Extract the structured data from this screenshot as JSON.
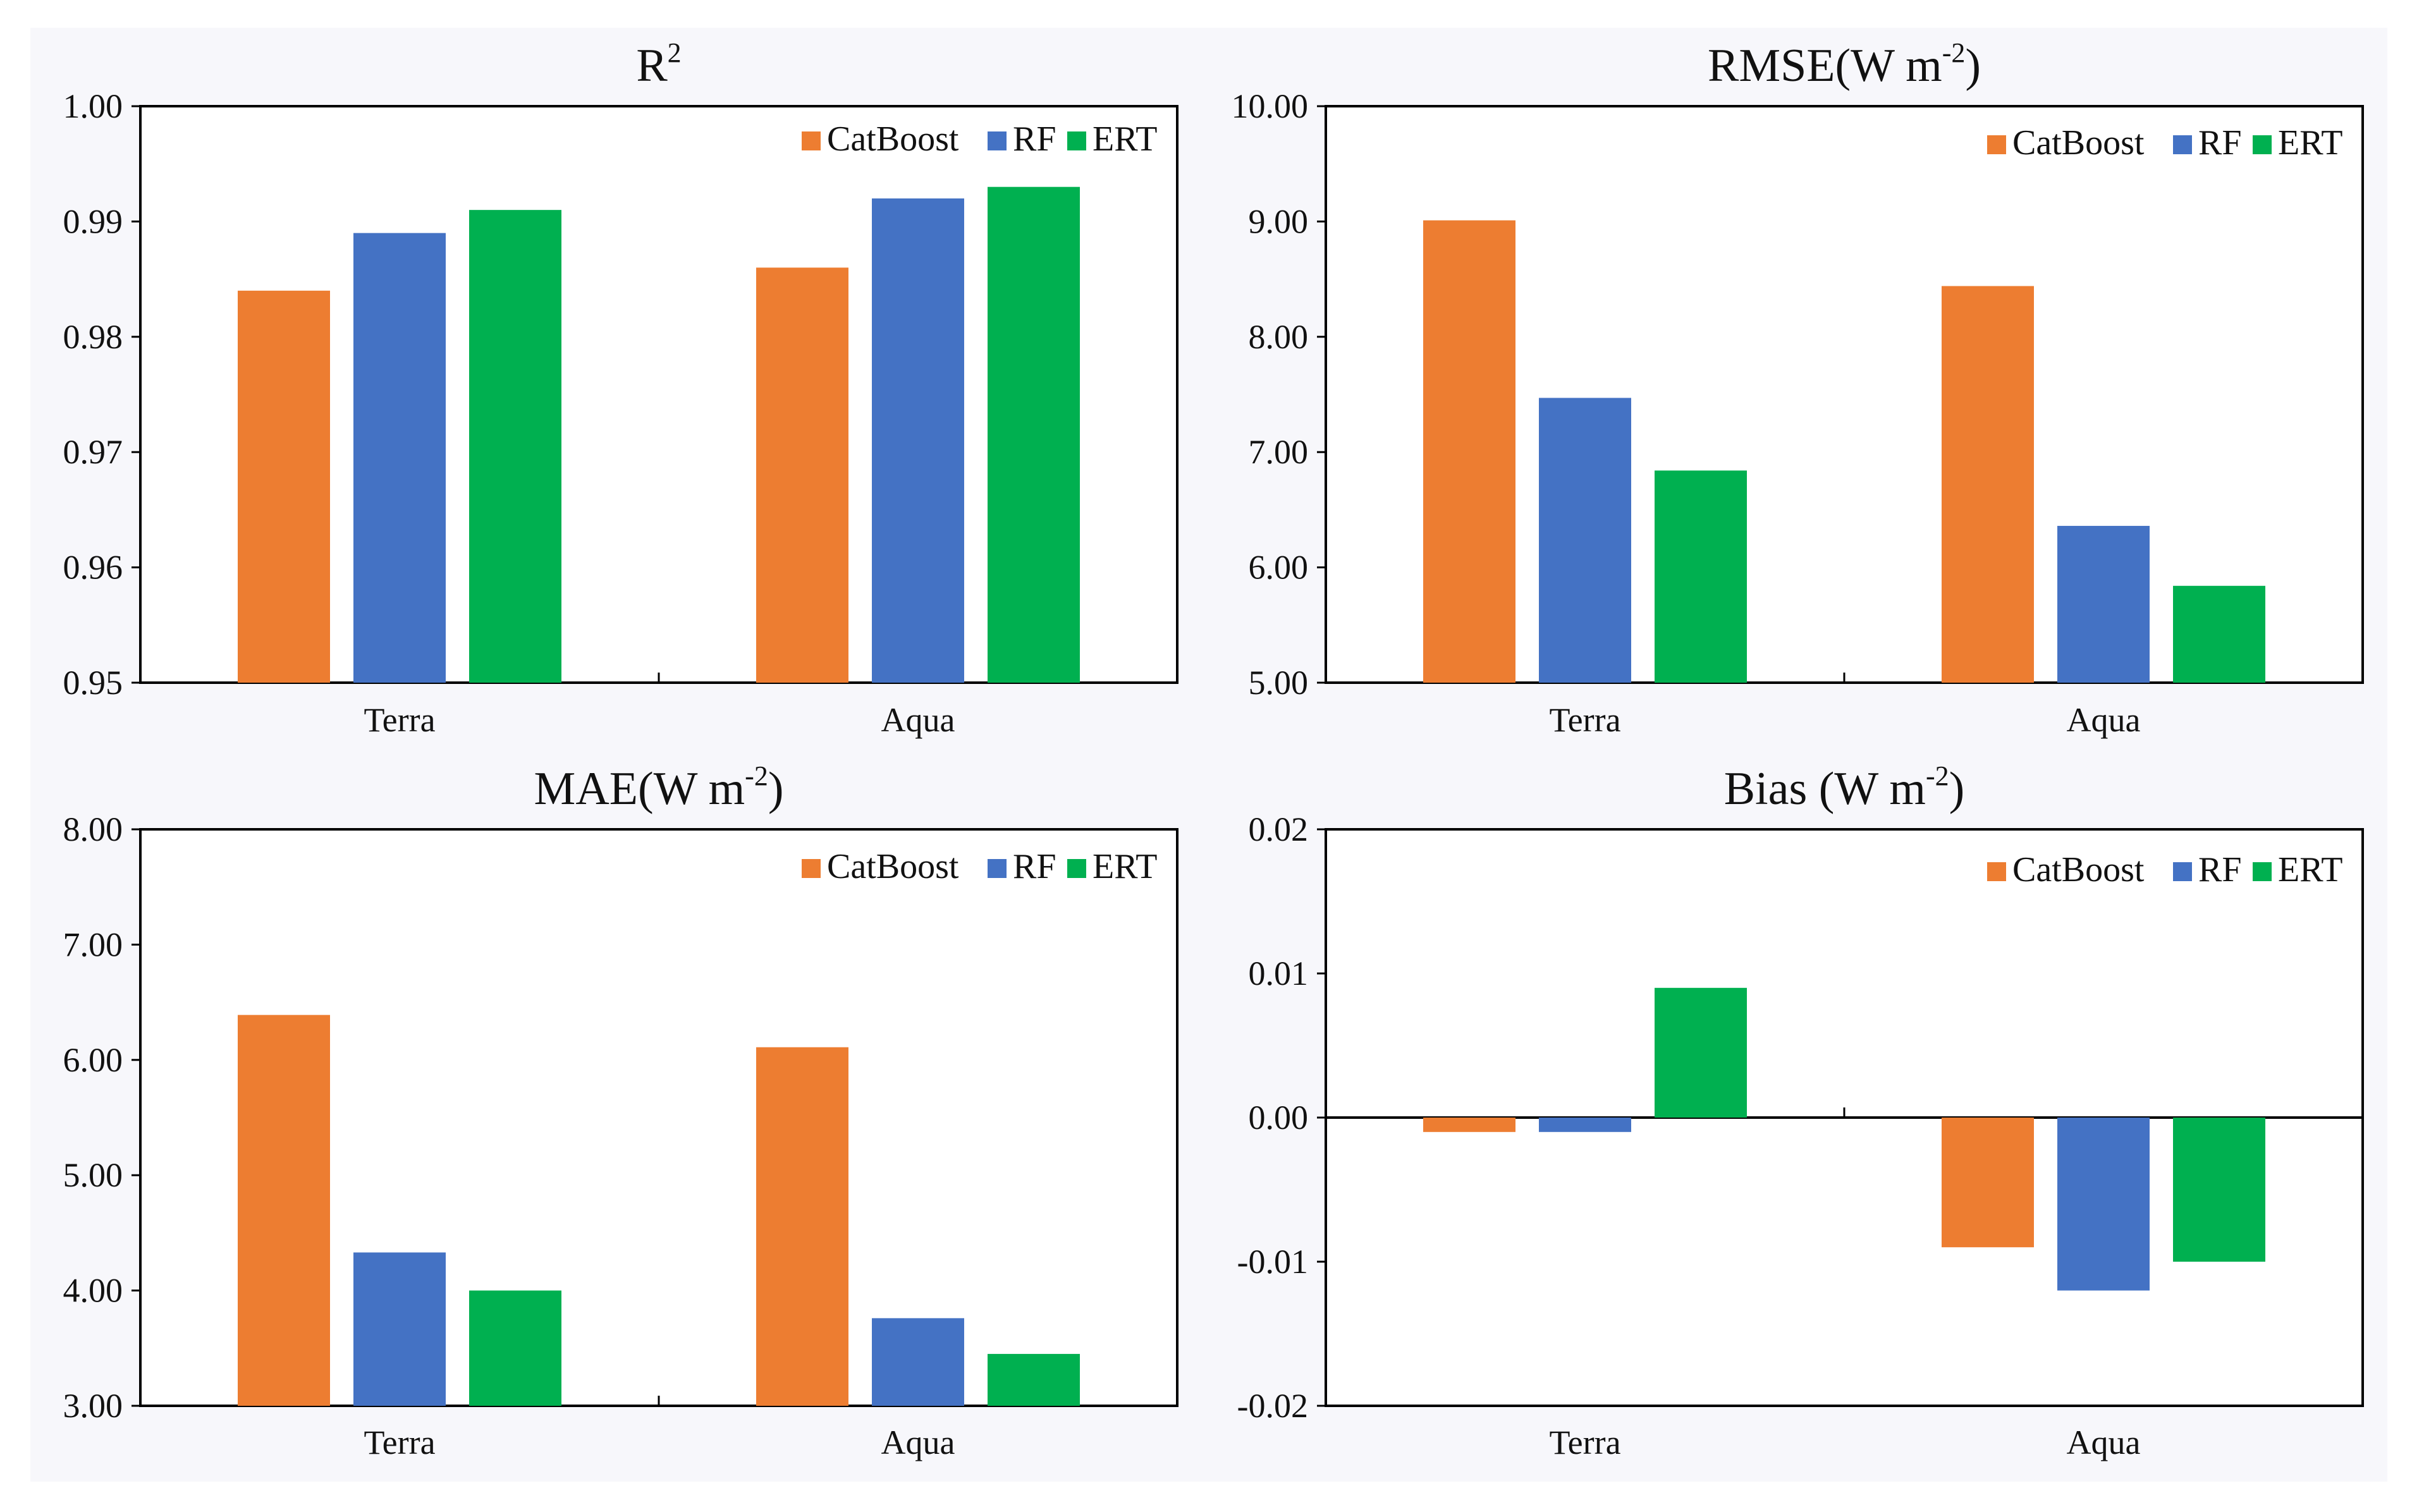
{
  "colors": {
    "catboost": "#ED7D31",
    "rf": "#4472C4",
    "ert": "#00B050"
  },
  "chart_data": [
    {
      "type": "bar",
      "title": "R",
      "title_sup": "2",
      "title_tail": "",
      "categories": [
        "Terra",
        "Aqua"
      ],
      "series": [
        {
          "name": "CatBoost",
          "values": [
            0.984,
            0.986
          ]
        },
        {
          "name": "RF",
          "values": [
            0.989,
            0.992
          ]
        },
        {
          "name": "ERT",
          "values": [
            0.991,
            0.993
          ]
        }
      ],
      "ylim": [
        0.95,
        1.0
      ],
      "yticks": [
        0.95,
        0.96,
        0.97,
        0.98,
        0.99,
        1.0
      ],
      "ytick_labels": [
        "0.95",
        "0.96",
        "0.97",
        "0.98",
        "0.99",
        "1.00"
      ],
      "legend": "top-right"
    },
    {
      "type": "bar",
      "title": "RMSE(W m",
      "title_sup": "-2",
      "title_tail": ")",
      "categories": [
        "Terra",
        "Aqua"
      ],
      "series": [
        {
          "name": "CatBoost",
          "values": [
            9.01,
            8.44
          ]
        },
        {
          "name": "RF",
          "values": [
            7.47,
            6.36
          ]
        },
        {
          "name": "ERT",
          "values": [
            6.84,
            5.84
          ]
        }
      ],
      "ylim": [
        5.0,
        10.0
      ],
      "yticks": [
        5,
        6,
        7,
        8,
        9,
        10
      ],
      "ytick_labels": [
        "5.00",
        "6.00",
        "7.00",
        "8.00",
        "9.00",
        "10.00"
      ],
      "legend": "top-right"
    },
    {
      "type": "bar",
      "title": "MAE(W m",
      "title_sup": "-2",
      "title_tail": ")",
      "categories": [
        "Terra",
        "Aqua"
      ],
      "series": [
        {
          "name": "CatBoost",
          "values": [
            6.39,
            6.11
          ]
        },
        {
          "name": "RF",
          "values": [
            4.33,
            3.76
          ]
        },
        {
          "name": "ERT",
          "values": [
            4.0,
            3.45
          ]
        }
      ],
      "ylim": [
        3.0,
        8.0
      ],
      "yticks": [
        3,
        4,
        5,
        6,
        7,
        8
      ],
      "ytick_labels": [
        "3.00",
        "4.00",
        "5.00",
        "6.00",
        "7.00",
        "8.00"
      ],
      "legend": "top-right"
    },
    {
      "type": "bar",
      "title": "Bias (W m",
      "title_sup": "-2",
      "title_tail": ")",
      "categories": [
        "Terra",
        "Aqua"
      ],
      "series": [
        {
          "name": "CatBoost",
          "values": [
            -0.001,
            -0.009
          ]
        },
        {
          "name": "RF",
          "values": [
            -0.001,
            -0.012
          ]
        },
        {
          "name": "ERT",
          "values": [
            0.009,
            -0.01
          ]
        }
      ],
      "ylim": [
        -0.02,
        0.02
      ],
      "yticks": [
        -0.02,
        -0.01,
        0.0,
        0.01,
        0.02
      ],
      "ytick_labels": [
        "-0.02",
        "-0.01",
        "0.00",
        "0.01",
        "0.02"
      ],
      "legend": "top-right"
    }
  ]
}
